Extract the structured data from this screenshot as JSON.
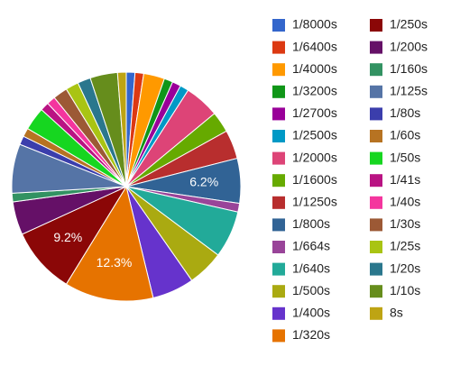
{
  "chart_data": {
    "type": "pie",
    "categories": [
      "1/8000s",
      "1/6400s",
      "1/4000s",
      "1/3200s",
      "1/2700s",
      "1/2500s",
      "1/2000s",
      "1/1600s",
      "1/1250s",
      "1/800s",
      "1/664s",
      "1/640s",
      "1/500s",
      "1/400s",
      "1/320s",
      "1/250s",
      "1/200s",
      "1/160s",
      "1/125s",
      "1/80s",
      "1/60s",
      "1/50s",
      "1/41s",
      "1/40s",
      "1/30s",
      "1/25s",
      "1/20s",
      "1/10s",
      "8s"
    ],
    "values": [
      1.2,
      1.2,
      2.9,
      1.2,
      1.2,
      1.2,
      4.8,
      2.9,
      4.0,
      6.2,
      1.2,
      6.5,
      5.0,
      5.8,
      12.3,
      9.2,
      4.6,
      1.2,
      6.8,
      1.2,
      1.2,
      3.2,
      1.2,
      1.2,
      2.0,
      1.8,
      1.8,
      3.8,
      1.2
    ],
    "data_labels": {
      "1/800s": "6.2%",
      "1/320s": "12.3%",
      "1/250s": "9.2%"
    },
    "colors": [
      "#3366cc",
      "#dc3912",
      "#ff9900",
      "#109618",
      "#990099",
      "#0099c6",
      "#dd4477",
      "#66aa00",
      "#b82e2e",
      "#316395",
      "#994499",
      "#22aa99",
      "#aaaa11",
      "#6633cc",
      "#e67300",
      "#8b0707",
      "#651067",
      "#329262",
      "#5574a6",
      "#3b3eac",
      "#b77322",
      "#16d620",
      "#b91383",
      "#f4359e",
      "#9c5935",
      "#a9c413",
      "#2a778d",
      "#668d1c",
      "#bea413"
    ],
    "legend_position": "right",
    "start_angle_deg": 0,
    "direction": "clockwise"
  }
}
